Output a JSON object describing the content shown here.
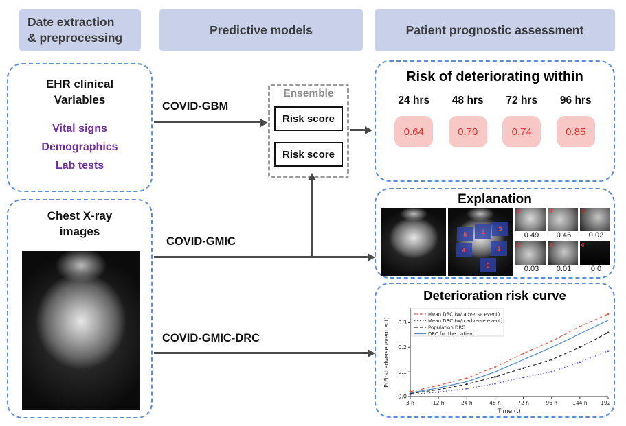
{
  "headers": {
    "extraction_line1": "Date extraction",
    "extraction_line2": "& preprocessing",
    "models": "Predictive models",
    "assessment": "Patient prognostic assessment"
  },
  "ehr_box": {
    "title_line1": "EHR clinical",
    "title_line2": "Variables",
    "items": [
      "Vital signs",
      "Demographics",
      "Lab tests"
    ]
  },
  "xray_box": {
    "title_line1": "Chest X-ray",
    "title_line2": "images"
  },
  "models": {
    "gbm": "COVID-GBM",
    "gmic": "COVID-GMIC",
    "gmic_drc": "COVID-GMIC-DRC",
    "ensemble_label": "Ensemble",
    "risk_score_1": "Risk score",
    "risk_score_2": "Risk score"
  },
  "risk_panel": {
    "title": "Risk of deteriorating within",
    "horizons": [
      {
        "label": "24 hrs",
        "value": "0.64"
      },
      {
        "label": "48 hrs",
        "value": "0.70"
      },
      {
        "label": "72 hrs",
        "value": "0.74"
      },
      {
        "label": "96 hrs",
        "value": "0.85"
      }
    ]
  },
  "explanation_panel": {
    "title": "Explanation",
    "patch_numbers": [
      "5",
      "1",
      "3",
      "4",
      "2",
      "6"
    ],
    "crops": [
      {
        "idx": "4",
        "value": "0.49"
      },
      {
        "idx": "5",
        "value": "0.46"
      },
      {
        "idx": "1",
        "value": "0.02"
      },
      {
        "idx": "2",
        "value": "0.03"
      },
      {
        "idx": "3",
        "value": "0.01"
      },
      {
        "idx": "6",
        "value": "0.0"
      }
    ]
  },
  "chart_data": {
    "type": "line",
    "title": "Deterioration risk curve",
    "xlabel": "Time (t)",
    "ylabel": "P(First adverse event ≤ t)",
    "x_tick_labels": [
      "3 h",
      "12 h",
      "24 h",
      "48 h",
      "72 h",
      "96 h",
      "144 h",
      "192 h"
    ],
    "y_ticks": [
      0.0,
      0.1,
      0.2,
      0.3
    ],
    "ylim": [
      0,
      0.36
    ],
    "grid": false,
    "legend_position": "upper left",
    "series": [
      {
        "name": "Mean DRC (w/ adverse event)",
        "color": "#e05c4b",
        "style": "dashed",
        "markers": true,
        "values": [
          0.02,
          0.045,
          0.075,
          0.12,
          0.175,
          0.225,
          0.285,
          0.335
        ]
      },
      {
        "name": "Mean DRC (w/o adverse event)",
        "color": "#5050e0",
        "style": "dotted",
        "markers": true,
        "values": [
          0.008,
          0.018,
          0.032,
          0.052,
          0.078,
          0.1,
          0.14,
          0.185
        ]
      },
      {
        "name": "Population DRC",
        "color": "#2b2b2b",
        "style": "dashed",
        "markers": true,
        "values": [
          0.012,
          0.028,
          0.05,
          0.08,
          0.115,
          0.15,
          0.2,
          0.26
        ]
      },
      {
        "name": "DRC for the patient",
        "color": "#4f8bc9",
        "style": "solid",
        "markers": false,
        "values": [
          0.015,
          0.035,
          0.06,
          0.1,
          0.15,
          0.2,
          0.255,
          0.31
        ]
      }
    ]
  }
}
